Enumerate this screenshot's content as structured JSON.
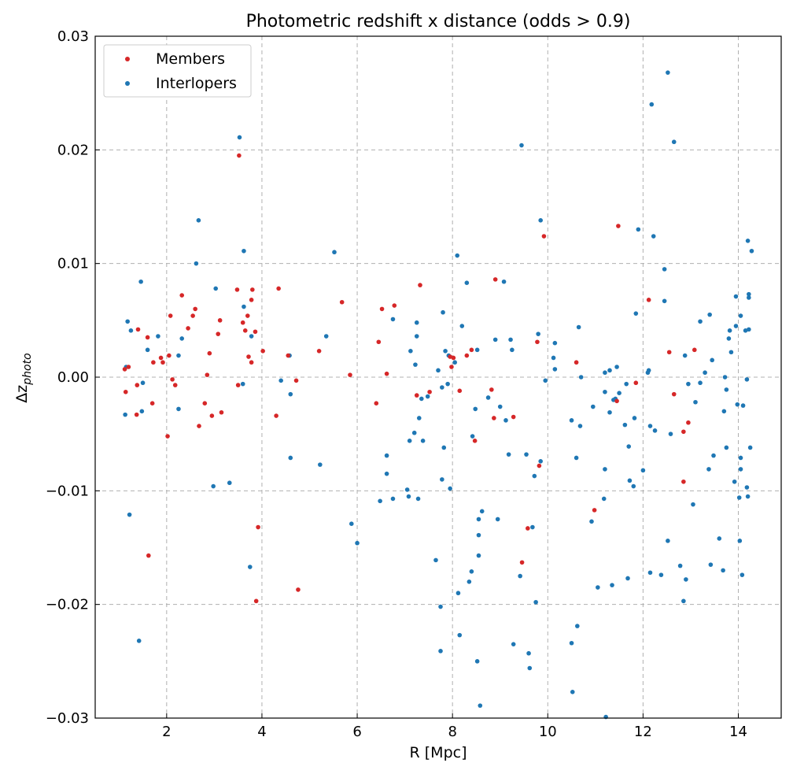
{
  "chart_data": {
    "type": "scatter",
    "title": "Photometric redshift x distance (odds > 0.9)",
    "xlabel": "R [Mpc]",
    "ylabel_base": "Δz",
    "ylabel_sub": "photo",
    "xlim": [
      0.5,
      14.9
    ],
    "ylim": [
      -0.03,
      0.03
    ],
    "x_ticks": [
      2,
      4,
      6,
      8,
      10,
      12,
      14
    ],
    "x_tick_labels": [
      "2",
      "4",
      "6",
      "8",
      "10",
      "12",
      "14"
    ],
    "y_ticks": [
      -0.03,
      -0.02,
      -0.01,
      0.0,
      0.01,
      0.02,
      0.03
    ],
    "y_tick_labels": [
      "−0.03",
      "−0.02",
      "−0.01",
      "0.00",
      "0.01",
      "0.02",
      "0.03"
    ],
    "grid": true,
    "legend_position": "top-left",
    "series": [
      {
        "name": "Members",
        "color": "#d62728",
        "points": [
          [
            1.12,
            0.0007
          ],
          [
            1.14,
            -0.0013
          ],
          [
            1.2,
            0.0009
          ],
          [
            1.38,
            -0.0007
          ],
          [
            1.4,
            0.0042
          ],
          [
            1.37,
            -0.0033
          ],
          [
            1.6,
            0.0035
          ],
          [
            1.62,
            -0.0157
          ],
          [
            1.7,
            -0.0023
          ],
          [
            1.72,
            0.0013
          ],
          [
            1.88,
            0.0017
          ],
          [
            1.92,
            0.0013
          ],
          [
            2.02,
            -0.0052
          ],
          [
            2.05,
            0.0019
          ],
          [
            2.08,
            0.0054
          ],
          [
            2.12,
            -0.0002
          ],
          [
            2.18,
            -0.0007
          ],
          [
            2.32,
            0.0072
          ],
          [
            2.45,
            0.0043
          ],
          [
            2.55,
            0.0054
          ],
          [
            2.6,
            0.006
          ],
          [
            2.68,
            -0.0043
          ],
          [
            2.8,
            -0.0023
          ],
          [
            2.85,
            0.0002
          ],
          [
            2.9,
            0.0021
          ],
          [
            2.95,
            -0.0034
          ],
          [
            3.08,
            0.0038
          ],
          [
            3.12,
            0.005
          ],
          [
            3.15,
            -0.0031
          ],
          [
            3.48,
            0.0077
          ],
          [
            3.5,
            -0.0007
          ],
          [
            3.52,
            0.0195
          ],
          [
            3.6,
            0.0048
          ],
          [
            3.65,
            0.0041
          ],
          [
            3.7,
            0.0054
          ],
          [
            3.72,
            0.0018
          ],
          [
            3.78,
            0.0013
          ],
          [
            3.78,
            0.0068
          ],
          [
            3.8,
            0.0077
          ],
          [
            3.86,
            0.004
          ],
          [
            3.88,
            -0.0197
          ],
          [
            3.92,
            -0.0132
          ],
          [
            4.02,
            0.0023
          ],
          [
            4.3,
            -0.0034
          ],
          [
            4.35,
            0.0078
          ],
          [
            4.55,
            0.0019
          ],
          [
            4.72,
            -0.0003
          ],
          [
            4.76,
            -0.0187
          ],
          [
            5.2,
            0.0023
          ],
          [
            5.68,
            0.0066
          ],
          [
            5.85,
            0.0002
          ],
          [
            6.4,
            -0.0023
          ],
          [
            6.45,
            0.0031
          ],
          [
            6.52,
            0.006
          ],
          [
            6.62,
            0.0003
          ],
          [
            6.78,
            0.0063
          ],
          [
            7.25,
            -0.0016
          ],
          [
            7.32,
            0.0081
          ],
          [
            7.52,
            -0.0013
          ],
          [
            7.95,
            0.0018
          ],
          [
            7.98,
            0.0009
          ],
          [
            8.02,
            0.0017
          ],
          [
            8.15,
            -0.0012
          ],
          [
            8.3,
            0.0019
          ],
          [
            8.4,
            0.0024
          ],
          [
            8.47,
            -0.0056
          ],
          [
            8.82,
            -0.0011
          ],
          [
            8.87,
            -0.0036
          ],
          [
            8.9,
            0.0086
          ],
          [
            9.28,
            -0.0035
          ],
          [
            9.46,
            -0.0163
          ],
          [
            9.58,
            -0.0133
          ],
          [
            9.78,
            0.0031
          ],
          [
            9.82,
            -0.0078
          ],
          [
            9.92,
            0.0124
          ],
          [
            10.6,
            0.0013
          ],
          [
            10.98,
            -0.0117
          ],
          [
            11.48,
            0.0133
          ],
          [
            11.45,
            -0.0021
          ],
          [
            11.85,
            -0.0005
          ],
          [
            12.12,
            0.0068
          ],
          [
            12.55,
            0.0022
          ],
          [
            12.65,
            -0.0015
          ],
          [
            12.85,
            -0.0092
          ],
          [
            12.85,
            -0.0048
          ],
          [
            12.95,
            -0.004
          ],
          [
            13.08,
            0.0024
          ]
        ]
      },
      {
        "name": "Interlopers",
        "color": "#1f77b4",
        "points": [
          [
            1.13,
            -0.0033
          ],
          [
            1.15,
            0.0009
          ],
          [
            1.18,
            0.0049
          ],
          [
            1.22,
            -0.0121
          ],
          [
            1.25,
            0.0041
          ],
          [
            1.42,
            -0.0232
          ],
          [
            1.46,
            0.0084
          ],
          [
            1.48,
            -0.003
          ],
          [
            1.5,
            -0.0005
          ],
          [
            1.6,
            0.0024
          ],
          [
            1.82,
            0.0036
          ],
          [
            2.25,
            -0.0028
          ],
          [
            2.32,
            0.0034
          ],
          [
            2.25,
            0.0019
          ],
          [
            2.62,
            0.01
          ],
          [
            2.67,
            0.0138
          ],
          [
            2.98,
            -0.0096
          ],
          [
            3.03,
            0.0078
          ],
          [
            3.32,
            -0.0093
          ],
          [
            3.53,
            0.0211
          ],
          [
            3.6,
            -0.0006
          ],
          [
            3.62,
            0.0062
          ],
          [
            3.62,
            0.0111
          ],
          [
            3.75,
            -0.0167
          ],
          [
            3.78,
            0.0036
          ],
          [
            4.4,
            -0.0003
          ],
          [
            4.58,
            0.0019
          ],
          [
            4.6,
            -0.0015
          ],
          [
            4.6,
            -0.0071
          ],
          [
            5.22,
            -0.0077
          ],
          [
            5.35,
            0.0036
          ],
          [
            5.52,
            0.011
          ],
          [
            5.88,
            -0.0129
          ],
          [
            6.0,
            -0.0146
          ],
          [
            6.48,
            -0.0109
          ],
          [
            6.62,
            -0.0069
          ],
          [
            6.62,
            -0.0085
          ],
          [
            6.75,
            0.0051
          ],
          [
            6.75,
            -0.0107
          ],
          [
            7.05,
            -0.0099
          ],
          [
            7.08,
            -0.0105
          ],
          [
            7.1,
            -0.0056
          ],
          [
            7.12,
            0.0023
          ],
          [
            7.2,
            -0.0049
          ],
          [
            7.22,
            0.0011
          ],
          [
            7.25,
            0.0048
          ],
          [
            7.25,
            0.0036
          ],
          [
            7.28,
            -0.0107
          ],
          [
            7.3,
            -0.0036
          ],
          [
            7.35,
            -0.0019
          ],
          [
            7.38,
            -0.0056
          ],
          [
            7.48,
            -0.0017
          ],
          [
            7.65,
            -0.0161
          ],
          [
            7.7,
            0.0006
          ],
          [
            7.75,
            -0.0241
          ],
          [
            7.75,
            -0.0202
          ],
          [
            7.78,
            -0.0009
          ],
          [
            7.8,
            0.0057
          ],
          [
            7.78,
            -0.009
          ],
          [
            7.82,
            -0.0062
          ],
          [
            7.85,
            0.0023
          ],
          [
            7.9,
            -0.0006
          ],
          [
            7.92,
            0.0019
          ],
          [
            7.95,
            -0.0098
          ],
          [
            8.05,
            0.0013
          ],
          [
            8.1,
            0.0107
          ],
          [
            8.12,
            -0.019
          ],
          [
            8.15,
            -0.0227
          ],
          [
            8.2,
            0.0045
          ],
          [
            8.3,
            0.0083
          ],
          [
            8.35,
            -0.018
          ],
          [
            8.4,
            -0.0171
          ],
          [
            8.42,
            -0.0052
          ],
          [
            8.48,
            -0.0028
          ],
          [
            8.52,
            -0.025
          ],
          [
            8.52,
            0.0024
          ],
          [
            8.55,
            -0.0139
          ],
          [
            8.55,
            -0.0157
          ],
          [
            8.55,
            -0.0125
          ],
          [
            8.58,
            -0.0289
          ],
          [
            8.62,
            -0.0118
          ],
          [
            8.75,
            -0.0018
          ],
          [
            8.9,
            0.0033
          ],
          [
            8.95,
            -0.0125
          ],
          [
            9.0,
            -0.0026
          ],
          [
            9.08,
            0.0084
          ],
          [
            9.12,
            -0.0038
          ],
          [
            9.18,
            -0.0068
          ],
          [
            9.22,
            0.0033
          ],
          [
            9.25,
            0.0024
          ],
          [
            9.28,
            -0.0235
          ],
          [
            9.42,
            -0.0175
          ],
          [
            9.45,
            0.0204
          ],
          [
            9.55,
            -0.0068
          ],
          [
            9.6,
            -0.0243
          ],
          [
            9.62,
            -0.0256
          ],
          [
            9.68,
            -0.0132
          ],
          [
            9.72,
            -0.0087
          ],
          [
            9.75,
            -0.0198
          ],
          [
            9.8,
            0.0038
          ],
          [
            9.85,
            -0.0074
          ],
          [
            9.85,
            0.0138
          ],
          [
            9.95,
            -0.0003
          ],
          [
            10.12,
            0.0017
          ],
          [
            10.15,
            0.0007
          ],
          [
            10.15,
            0.003
          ],
          [
            10.5,
            -0.0038
          ],
          [
            10.5,
            -0.0234
          ],
          [
            10.52,
            -0.0277
          ],
          [
            10.6,
            -0.0071
          ],
          [
            10.62,
            -0.0219
          ],
          [
            10.65,
            0.0044
          ],
          [
            10.68,
            -0.0043
          ],
          [
            10.7,
            0.0
          ],
          [
            10.92,
            -0.0127
          ],
          [
            10.95,
            -0.0026
          ],
          [
            11.05,
            -0.0185
          ],
          [
            11.18,
            -0.0107
          ],
          [
            11.2,
            -0.0013
          ],
          [
            11.2,
            -0.0081
          ],
          [
            11.2,
            0.0004
          ],
          [
            11.22,
            -0.0299
          ],
          [
            11.3,
            0.0006
          ],
          [
            11.3,
            -0.0031
          ],
          [
            11.35,
            -0.0183
          ],
          [
            11.38,
            -0.002
          ],
          [
            11.42,
            -0.0019
          ],
          [
            11.45,
            0.0009
          ],
          [
            11.5,
            -0.0014
          ],
          [
            11.62,
            -0.0042
          ],
          [
            11.65,
            -0.0006
          ],
          [
            11.68,
            -0.0177
          ],
          [
            11.7,
            -0.0061
          ],
          [
            11.72,
            -0.0091
          ],
          [
            11.8,
            -0.0096
          ],
          [
            11.82,
            -0.0036
          ],
          [
            11.85,
            0.0056
          ],
          [
            11.9,
            0.013
          ],
          [
            12.0,
            -0.0082
          ],
          [
            12.1,
            0.0004
          ],
          [
            12.12,
            0.0006
          ],
          [
            12.15,
            -0.0043
          ],
          [
            12.15,
            -0.0172
          ],
          [
            12.18,
            0.024
          ],
          [
            12.22,
            0.0124
          ],
          [
            12.25,
            -0.0047
          ],
          [
            12.38,
            -0.0174
          ],
          [
            12.45,
            0.0095
          ],
          [
            12.45,
            0.0067
          ],
          [
            12.52,
            0.0268
          ],
          [
            12.52,
            -0.0144
          ],
          [
            12.58,
            -0.005
          ],
          [
            12.65,
            0.0207
          ],
          [
            12.78,
            -0.0166
          ],
          [
            12.85,
            -0.0197
          ],
          [
            12.88,
            0.0019
          ],
          [
            12.9,
            -0.0178
          ],
          [
            12.95,
            -0.0006
          ],
          [
            13.05,
            -0.0112
          ],
          [
            13.1,
            -0.0022
          ],
          [
            13.2,
            -0.0005
          ],
          [
            13.2,
            0.0049
          ],
          [
            13.3,
            0.0004
          ],
          [
            13.38,
            -0.0081
          ],
          [
            13.4,
            0.0055
          ],
          [
            13.42,
            -0.0165
          ],
          [
            13.45,
            0.0015
          ],
          [
            13.48,
            -0.0069
          ],
          [
            13.6,
            -0.0142
          ],
          [
            13.68,
            -0.017
          ],
          [
            13.7,
            -0.003
          ],
          [
            13.72,
            0.0
          ],
          [
            13.75,
            -0.0011
          ],
          [
            13.75,
            -0.0062
          ],
          [
            13.8,
            0.0034
          ],
          [
            13.82,
            0.0041
          ],
          [
            13.85,
            0.0022
          ],
          [
            13.92,
            -0.0092
          ],
          [
            13.95,
            0.0071
          ],
          [
            13.95,
            0.0045
          ],
          [
            13.98,
            -0.0024
          ],
          [
            14.02,
            -0.0106
          ],
          [
            14.03,
            -0.0144
          ],
          [
            14.05,
            -0.0081
          ],
          [
            14.05,
            -0.0071
          ],
          [
            14.05,
            0.0054
          ],
          [
            14.08,
            -0.0174
          ],
          [
            14.1,
            -0.0025
          ],
          [
            14.15,
            0.0041
          ],
          [
            14.18,
            -0.0002
          ],
          [
            14.18,
            -0.0097
          ],
          [
            14.2,
            -0.0105
          ],
          [
            14.2,
            0.012
          ],
          [
            14.22,
            0.0073
          ],
          [
            14.22,
            0.007
          ],
          [
            14.22,
            0.0042
          ],
          [
            14.25,
            -0.0062
          ],
          [
            14.28,
            0.0111
          ]
        ]
      }
    ]
  }
}
